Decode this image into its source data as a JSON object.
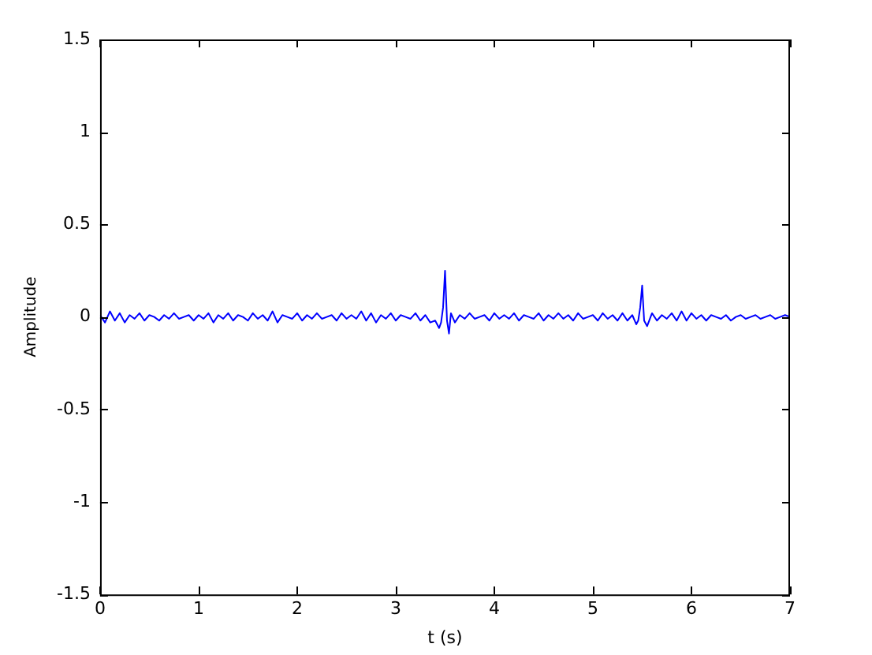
{
  "chart_data": {
    "type": "line",
    "xlabel": "t (s)",
    "ylabel": "Amplitude",
    "xlim": [
      0,
      7
    ],
    "ylim": [
      -1.5,
      1.5
    ],
    "xticks": [
      0,
      1,
      2,
      3,
      4,
      5,
      6,
      7
    ],
    "yticks": [
      -1.5,
      -1,
      -0.5,
      0,
      0.5,
      1,
      1.5
    ],
    "grid": false,
    "legend": false,
    "marker": "none",
    "line_style": "solid",
    "series": [
      {
        "color": "#0000ff",
        "x": [
          0,
          0.05,
          0.1,
          0.15,
          0.2,
          0.25,
          0.3,
          0.35,
          0.4,
          0.45,
          0.5,
          0.55,
          0.6,
          0.65,
          0.7,
          0.75,
          0.8,
          0.85,
          0.9,
          0.95,
          1,
          1.05,
          1.1,
          1.15,
          1.2,
          1.25,
          1.3,
          1.35,
          1.4,
          1.45,
          1.5,
          1.55,
          1.6,
          1.65,
          1.7,
          1.75,
          1.8,
          1.85,
          1.9,
          1.95,
          2,
          2.05,
          2.1,
          2.15,
          2.2,
          2.25,
          2.3,
          2.35,
          2.4,
          2.45,
          2.5,
          2.55,
          2.6,
          2.65,
          2.7,
          2.75,
          2.8,
          2.85,
          2.9,
          2.95,
          3,
          3.05,
          3.1,
          3.15,
          3.2,
          3.25,
          3.3,
          3.35,
          3.4,
          3.44,
          3.46,
          3.48,
          3.5,
          3.52,
          3.54,
          3.56,
          3.6,
          3.65,
          3.7,
          3.75,
          3.8,
          3.85,
          3.9,
          3.95,
          4,
          4.05,
          4.1,
          4.15,
          4.2,
          4.25,
          4.3,
          4.35,
          4.4,
          4.45,
          4.5,
          4.55,
          4.6,
          4.65,
          4.7,
          4.75,
          4.8,
          4.85,
          4.9,
          4.95,
          5,
          5.05,
          5.1,
          5.15,
          5.2,
          5.25,
          5.3,
          5.35,
          5.4,
          5.44,
          5.46,
          5.48,
          5.5,
          5.52,
          5.55,
          5.6,
          5.65,
          5.7,
          5.75,
          5.8,
          5.85,
          5.9,
          5.95,
          6,
          6.05,
          6.1,
          6.15,
          6.2,
          6.25,
          6.3,
          6.35,
          6.4,
          6.45,
          6.5,
          6.55,
          6.6,
          6.65,
          6.7,
          6.75,
          6.8,
          6.85,
          6.9,
          6.95,
          7
        ],
        "values": [
          0.01,
          -0.03,
          0.03,
          -0.02,
          0.02,
          -0.03,
          0.01,
          -0.01,
          0.02,
          -0.02,
          0.01,
          0,
          -0.02,
          0.01,
          -0.01,
          0.02,
          -0.01,
          0,
          0.01,
          -0.02,
          0.01,
          -0.01,
          0.02,
          -0.03,
          0.01,
          -0.01,
          0.02,
          -0.02,
          0.01,
          0,
          -0.02,
          0.02,
          -0.01,
          0.01,
          -0.02,
          0.03,
          -0.03,
          0.01,
          0,
          -0.01,
          0.02,
          -0.02,
          0.01,
          -0.01,
          0.02,
          -0.01,
          0,
          0.01,
          -0.02,
          0.02,
          -0.01,
          0.01,
          -0.01,
          0.03,
          -0.02,
          0.02,
          -0.03,
          0.01,
          -0.01,
          0.02,
          -0.02,
          0.01,
          0,
          -0.01,
          0.02,
          -0.02,
          0.01,
          -0.03,
          -0.02,
          -0.06,
          -0.03,
          0.05,
          0.25,
          -0.02,
          -0.09,
          0.02,
          -0.03,
          0.01,
          -0.01,
          0.02,
          -0.01,
          0,
          0.01,
          -0.02,
          0.02,
          -0.01,
          0.01,
          -0.01,
          0.02,
          -0.02,
          0.01,
          0,
          -0.01,
          0.02,
          -0.02,
          0.01,
          -0.01,
          0.02,
          -0.01,
          0.01,
          -0.02,
          0.02,
          -0.01,
          0,
          0.01,
          -0.02,
          0.02,
          -0.01,
          0.01,
          -0.02,
          0.02,
          -0.02,
          0.01,
          -0.04,
          -0.02,
          0.05,
          0.17,
          -0.02,
          -0.05,
          0.02,
          -0.02,
          0.01,
          -0.01,
          0.02,
          -0.02,
          0.03,
          -0.02,
          0.02,
          -0.01,
          0.01,
          -0.02,
          0.01,
          0,
          -0.01,
          0.01,
          -0.02,
          0,
          0.01,
          -0.01,
          0,
          0.01,
          -0.01,
          0,
          0.01,
          -0.01,
          0,
          0.01,
          0
        ]
      }
    ]
  }
}
